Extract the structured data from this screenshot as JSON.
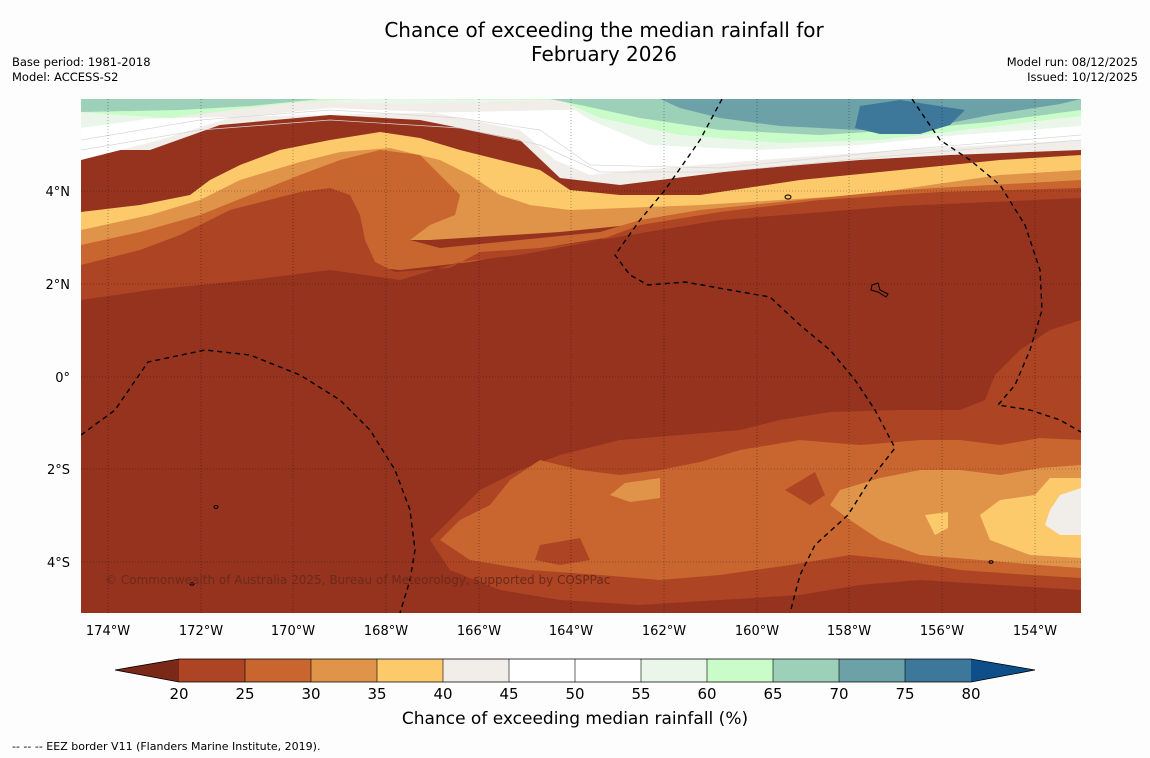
{
  "title_line1": "Chance of exceeding the median rainfall for",
  "title_line2": "February 2026",
  "meta_left": {
    "base_period": "Base period: 1981-2018",
    "model": "Model: ACCESS-S2"
  },
  "meta_right": {
    "model_run": "Model run: 08/12/2025",
    "issued": "Issued: 10/12/2025"
  },
  "map": {
    "lon_labels": [
      "174°W",
      "172°W",
      "170°W",
      "168°W",
      "166°W",
      "164°W",
      "162°W",
      "160°W",
      "158°W",
      "156°W",
      "154°W"
    ],
    "lat_labels": [
      "4°N",
      "2°N",
      "0°",
      "2°S",
      "4°S"
    ],
    "copyright": "© Commonwealth of Australia 2025, Bureau of Meteorology, supported by COSPPac"
  },
  "colorbar": {
    "label": "Chance of exceeding median rainfall (%)",
    "ticks": [
      "20",
      "25",
      "30",
      "35",
      "40",
      "45",
      "50",
      "55",
      "60",
      "65",
      "70",
      "75",
      "80"
    ],
    "colors": {
      "below_20": "#7a2817",
      "c20_25": "#ad4423",
      "c25_30": "#c9652f",
      "c30_35": "#e0944a",
      "c35_40": "#fdca6b",
      "c40_45": "#f1ede8",
      "c45_50": "#ffffff",
      "c50_55": "#ffffff",
      "c55_60": "#eaf6ea",
      "c60_65": "#c9fcc9",
      "c65_70": "#9dd0b8",
      "c70_75": "#6ca2a7",
      "c75_80": "#3d7799",
      "above_80": "#0f4f89",
      "dominant_low": "#96331f"
    }
  },
  "footer": "--  --  -- EEZ border V11 (Flanders Marine Institute, 2019)."
}
